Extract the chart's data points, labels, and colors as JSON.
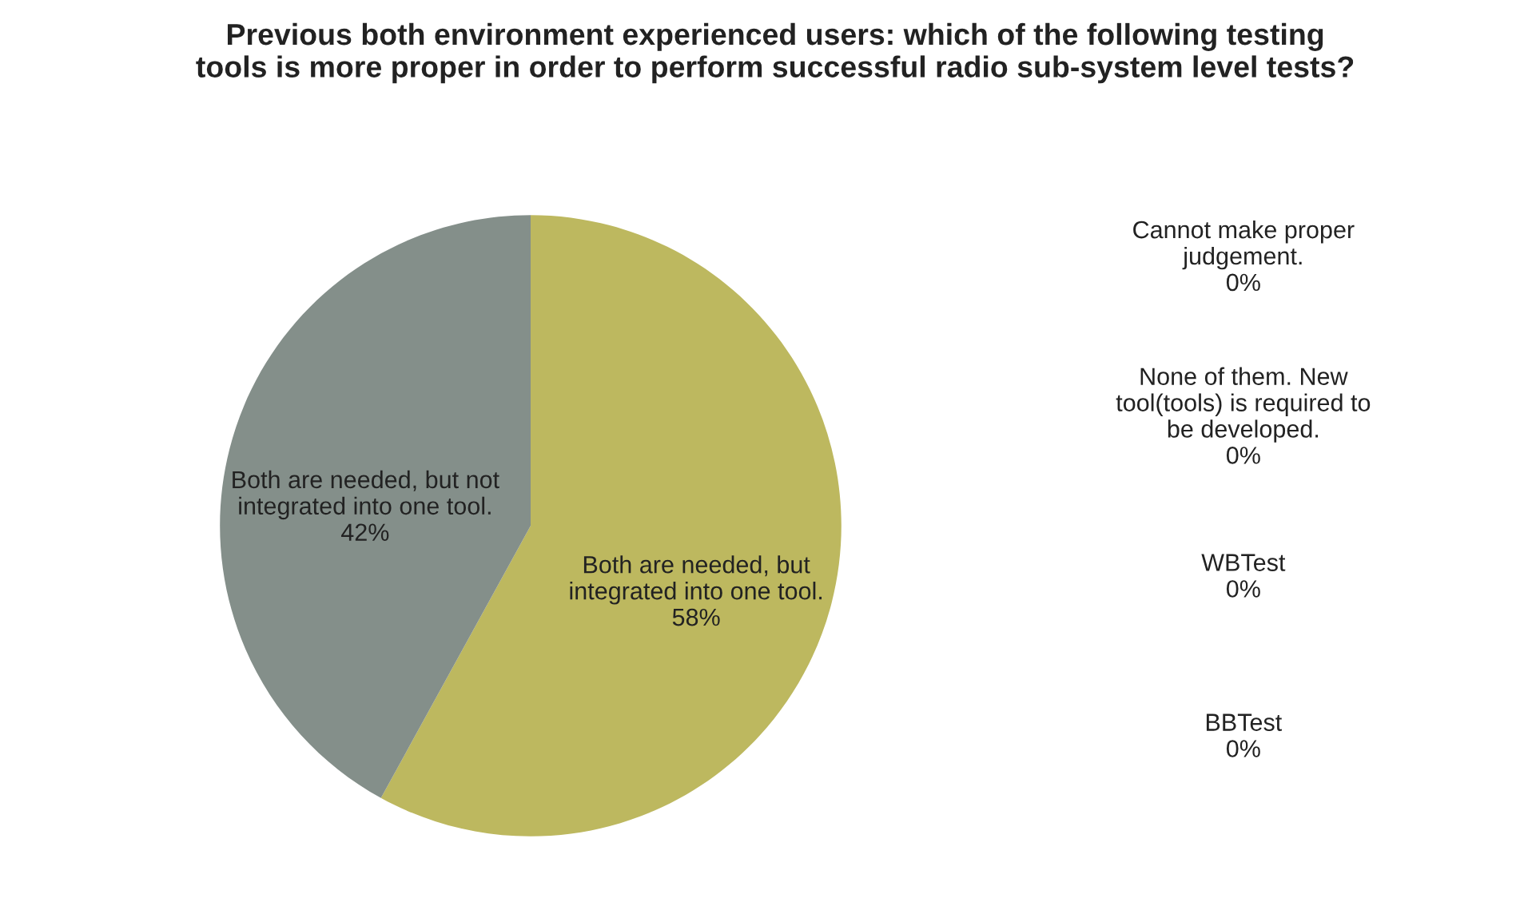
{
  "chart_data": {
    "type": "pie",
    "title": "Previous both environment experienced users: which of the following testing\ntools is more proper in order to perform successful radio sub-system level tests?",
    "categories": [
      "Both are needed, but\nintegrated into one tool.",
      "Both are needed, but not\nintegrated into one tool.",
      "Cannot make proper\njudgement.",
      "None of them. New\ntool(tools) is required to\nbe developed.",
      "WBTest",
      "BBTest"
    ],
    "values": [
      58,
      42,
      0,
      0,
      0,
      0
    ],
    "colors": [
      "#bdb85f",
      "#848f8a",
      "#4f81bd",
      "#c0504d",
      "#9bbb59",
      "#8064a2"
    ],
    "value_labels": [
      "58%",
      "42%",
      "0%",
      "0%",
      "0%",
      "0%"
    ]
  }
}
